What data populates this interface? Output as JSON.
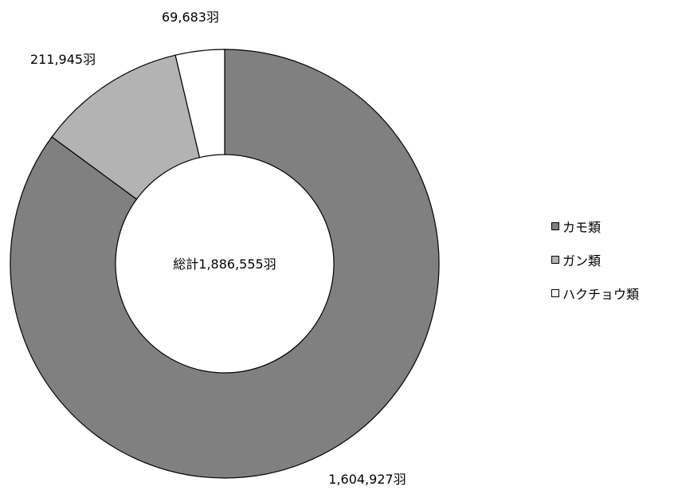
{
  "chart_data": {
    "type": "pie",
    "variant": "donut",
    "center_label": "総計1,886,555羽",
    "slices": [
      {
        "name": "カモ類",
        "value": 1604927,
        "label": "1,604,927羽",
        "color": "#808080"
      },
      {
        "name": "ガン類",
        "value": 211945,
        "label": "211,945羽",
        "color": "#b3b3b3"
      },
      {
        "name": "ハクチョウ類",
        "value": 69683,
        "label": "69,683羽",
        "color": "#ffffff"
      }
    ],
    "legend_position": "right"
  }
}
